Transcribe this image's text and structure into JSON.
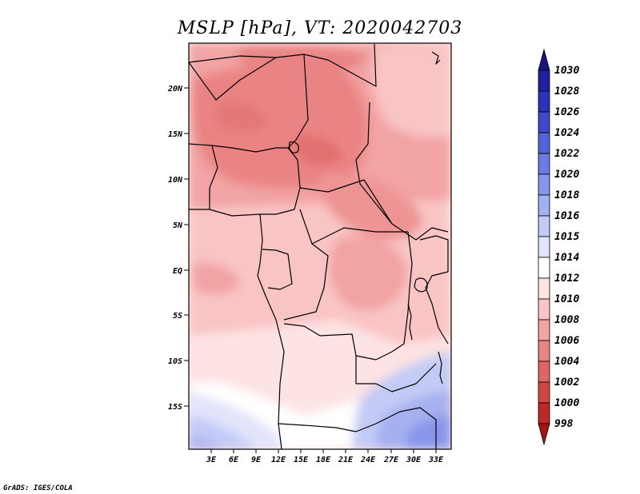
{
  "title": "MSLP [hPa], VT: 2020042703",
  "credit": "GrADS: IGES/COLA",
  "map": {
    "variable": "MSLP",
    "units": "hPa",
    "valid_time": "2020042703",
    "lat_labels": [
      "20N",
      "15N",
      "10N",
      "5N",
      "EQ",
      "5S",
      "10S",
      "15S"
    ],
    "lon_labels": [
      "3E",
      "6E",
      "9E",
      "12E",
      "15E",
      "18E",
      "21E",
      "24E",
      "27E",
      "30E",
      "33E"
    ]
  },
  "colorbar": {
    "levels": [
      "1030",
      "1028",
      "1026",
      "1024",
      "1022",
      "1020",
      "1018",
      "1016",
      "1015",
      "1014",
      "1012",
      "1010",
      "1008",
      "1006",
      "1004",
      "1002",
      "1000",
      "998"
    ],
    "colors": [
      "#1c1280",
      "#22219c",
      "#2d33b8",
      "#3f4acb",
      "#5462d8",
      "#6a7ce2",
      "#8796ea",
      "#a5b0f0",
      "#c3caf6",
      "#e2e4fb",
      "#ffffff",
      "#fde3e3",
      "#f9c4c4",
      "#f2a3a3",
      "#ea8484",
      "#df6464",
      "#d24343",
      "#c02828",
      "#a51515"
    ]
  }
}
